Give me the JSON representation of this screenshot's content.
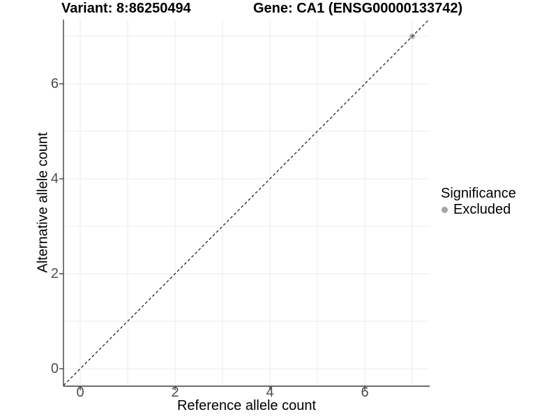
{
  "header": {
    "variant_title": "Variant: 8:86250494",
    "gene_title": "Gene: CA1 (ENSG00000133742)"
  },
  "chart_data": {
    "type": "scatter",
    "xlabel": "Reference allele count",
    "ylabel": "Alternative allele count",
    "xlim": [
      -0.35,
      7.35
    ],
    "ylim": [
      -0.35,
      7.35
    ],
    "x_ticks": [
      0,
      2,
      4,
      6
    ],
    "y_ticks": [
      0,
      2,
      4,
      6
    ],
    "gridlines_at": [
      0,
      1,
      2,
      3,
      4,
      5,
      6,
      7
    ],
    "grid": true,
    "identity_line": {
      "style": "dashed",
      "slope": 1,
      "intercept": 0,
      "color": "#000000"
    },
    "series": [
      {
        "name": "Excluded",
        "color": "#b1b1b1",
        "points": [
          [
            7,
            7
          ]
        ]
      }
    ],
    "legend": {
      "title": "Significance",
      "position": "right",
      "entries": [
        {
          "label": "Excluded",
          "color": "#a4a4a4",
          "marker": "circle"
        }
      ]
    }
  },
  "style_colors": {
    "panel_background": "#ffffff",
    "gridline": "#ebebeb",
    "axis_line": "#3f3f3f",
    "tick_mark": "#3f3f3f",
    "tick_label": "#4d4d4d"
  }
}
